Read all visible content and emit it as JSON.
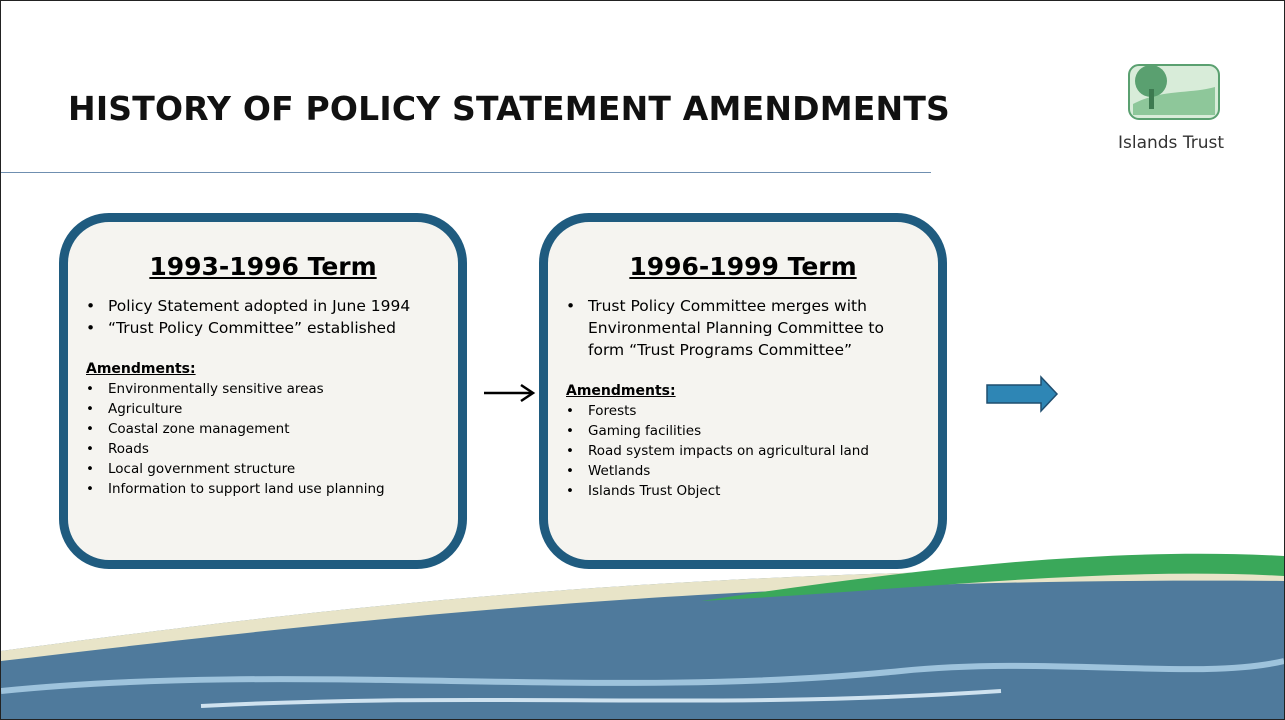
{
  "header": {
    "title": "HISTORY OF POLICY STATEMENT AMENDMENTS",
    "logo_text": "Islands Trust"
  },
  "terms": [
    {
      "title": "1993-1996 Term",
      "points": [
        "Policy Statement adopted in June 1994",
        "“Trust Policy Committee” established"
      ],
      "amendments_heading": "Amendments:",
      "amendments": [
        "Environmentally sensitive areas",
        "Agriculture",
        "Coastal zone management",
        "Roads",
        "Local government structure",
        "Information to support land use planning"
      ]
    },
    {
      "title": "1996-1999 Term",
      "points": [
        "Trust Policy Committee merges with Environmental Planning Committee to form “Trust Programs Committee”"
      ],
      "amendments_heading": "Amendments:",
      "amendments": [
        "Forests",
        "Gaming facilities",
        "Road system impacts on agricultural land",
        "Wetlands",
        "Islands Trust Object"
      ]
    }
  ]
}
